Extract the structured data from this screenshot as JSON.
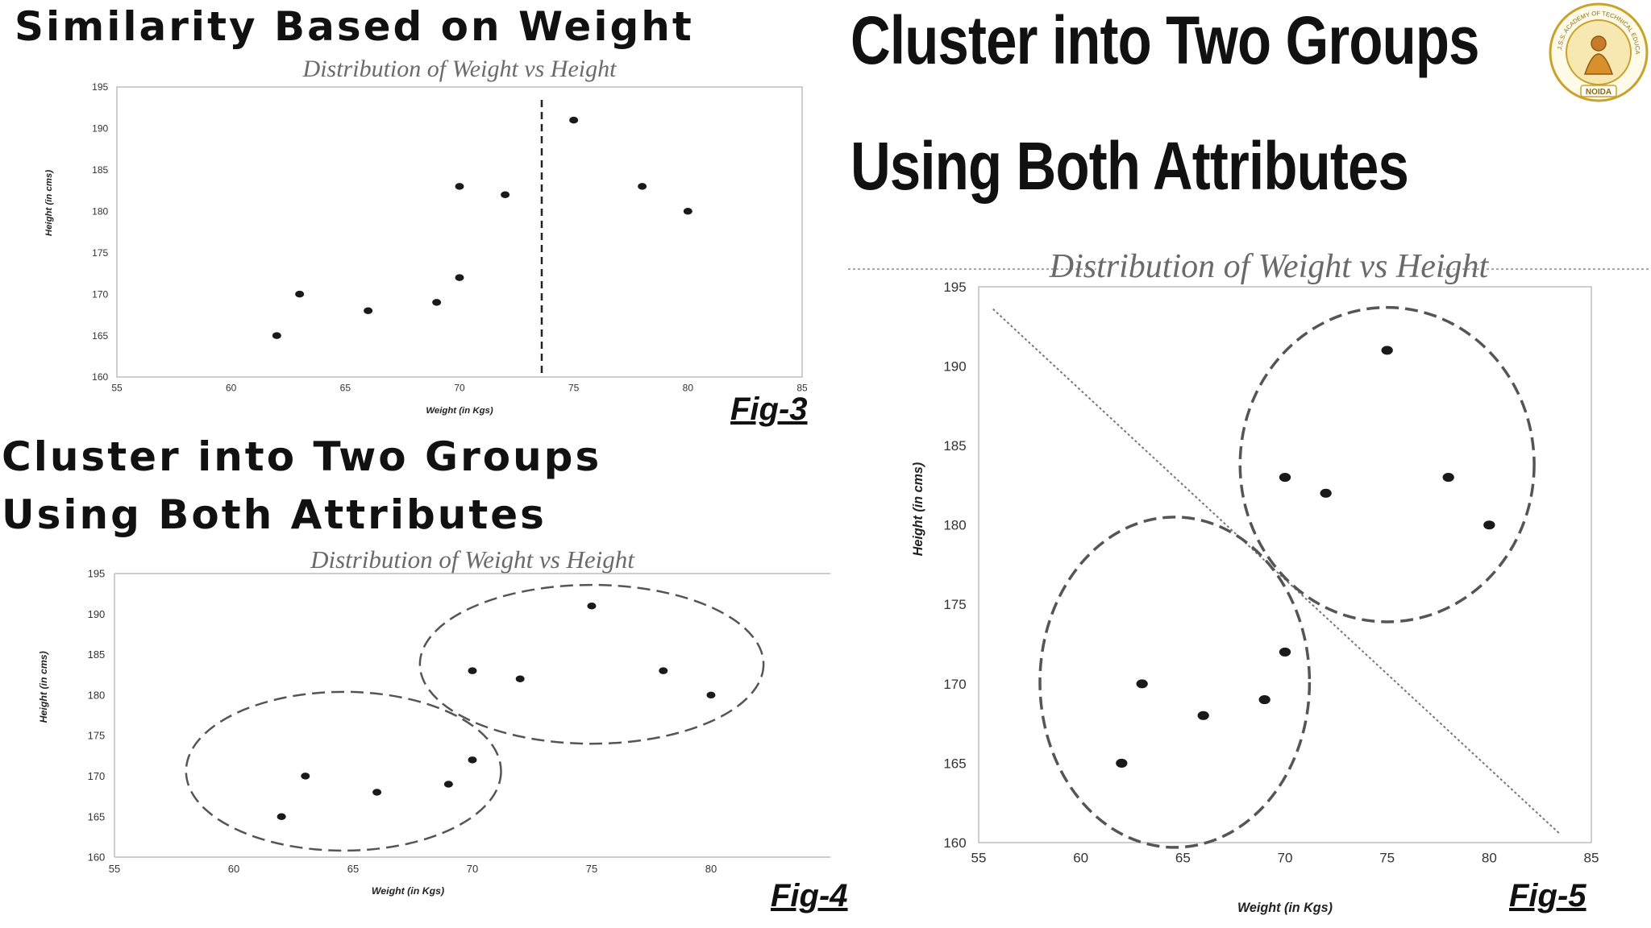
{
  "headings": {
    "fig3_title": "Similarity Based on Weight",
    "fig4_title_line1": "Cluster into Two Groups",
    "fig4_title_line2": "Using Both Attributes",
    "fig5_title_line1": "Cluster into Two Groups",
    "fig5_title_line2": "Using Both Attributes"
  },
  "figure_labels": {
    "fig3": "Fig-3",
    "fig4": "Fig-4",
    "fig5": "Fig-5"
  },
  "logo": {
    "ring_text": "J.S.S. ACADEMY OF TECHNICAL EDUCATION",
    "bottom_text": "NOIDA",
    "color": "#c8a22c"
  },
  "colors": {
    "points": "#1a1a1a",
    "dashed": "#555555",
    "frame": "#bdbdbd",
    "title": "#6a6a6a"
  },
  "chart_data": [
    {
      "id": "fig3",
      "type": "scatter",
      "title": "Distribution of Weight vs Height",
      "xlabel": "Weight (in Kgs)",
      "ylabel": "Height (in cms)",
      "xlim": [
        55,
        85
      ],
      "ylim": [
        160,
        195
      ],
      "xticks": [
        55,
        60,
        65,
        70,
        75,
        80,
        85
      ],
      "yticks": [
        160,
        165,
        170,
        175,
        180,
        185,
        190,
        195
      ],
      "points": [
        [
          62,
          165
        ],
        [
          63,
          170
        ],
        [
          66,
          168
        ],
        [
          69,
          169
        ],
        [
          70,
          172
        ],
        [
          70,
          183
        ],
        [
          72,
          182
        ],
        [
          75,
          191
        ],
        [
          78,
          183
        ],
        [
          80,
          180
        ]
      ],
      "divider": {
        "kind": "vertical",
        "x": 73.6
      }
    },
    {
      "id": "fig4",
      "type": "scatter",
      "title": "Distribution of Weight vs Height",
      "xlabel": "Weight (in Kgs)",
      "ylabel": "Height (in cms)",
      "xlim": [
        55,
        85
      ],
      "ylim": [
        160,
        195
      ],
      "xticks": [
        55,
        60,
        65,
        70,
        75,
        80
      ],
      "yticks": [
        160,
        165,
        170,
        175,
        180,
        185,
        190,
        195
      ],
      "points": [
        [
          62,
          165
        ],
        [
          63,
          170
        ],
        [
          66,
          168
        ],
        [
          69,
          169
        ],
        [
          70,
          172
        ],
        [
          70,
          183
        ],
        [
          72,
          182
        ],
        [
          75,
          191
        ],
        [
          78,
          183
        ],
        [
          80,
          180
        ]
      ],
      "clusters": [
        {
          "center": [
            64.6,
            170.6
          ],
          "radius": [
            6.6,
            9.8
          ]
        },
        {
          "center": [
            75.0,
            183.8
          ],
          "radius": [
            7.2,
            9.8
          ]
        }
      ]
    },
    {
      "id": "fig5",
      "type": "scatter",
      "title": "Distribution of Weight vs Height",
      "xlabel": "Weight (in Kgs)",
      "ylabel": "Height (in cms)",
      "xlim": [
        55,
        85
      ],
      "ylim": [
        160,
        195
      ],
      "xticks": [
        55,
        60,
        65,
        70,
        75,
        80,
        85
      ],
      "yticks": [
        160,
        165,
        170,
        175,
        180,
        185,
        190,
        195
      ],
      "points": [
        [
          62,
          165
        ],
        [
          63,
          170
        ],
        [
          66,
          168
        ],
        [
          69,
          169
        ],
        [
          70,
          172
        ],
        [
          70,
          183
        ],
        [
          72,
          182
        ],
        [
          75,
          191
        ],
        [
          78,
          183
        ],
        [
          80,
          180
        ]
      ],
      "clusters": [
        {
          "center": [
            64.6,
            170.1
          ],
          "radius": [
            6.6,
            10.4
          ]
        },
        {
          "center": [
            75.0,
            183.8
          ],
          "radius": [
            7.2,
            9.9
          ]
        }
      ],
      "divider": {
        "kind": "line",
        "from": [
          55.7,
          193.6
        ],
        "to": [
          83.5,
          160.5
        ]
      }
    }
  ]
}
